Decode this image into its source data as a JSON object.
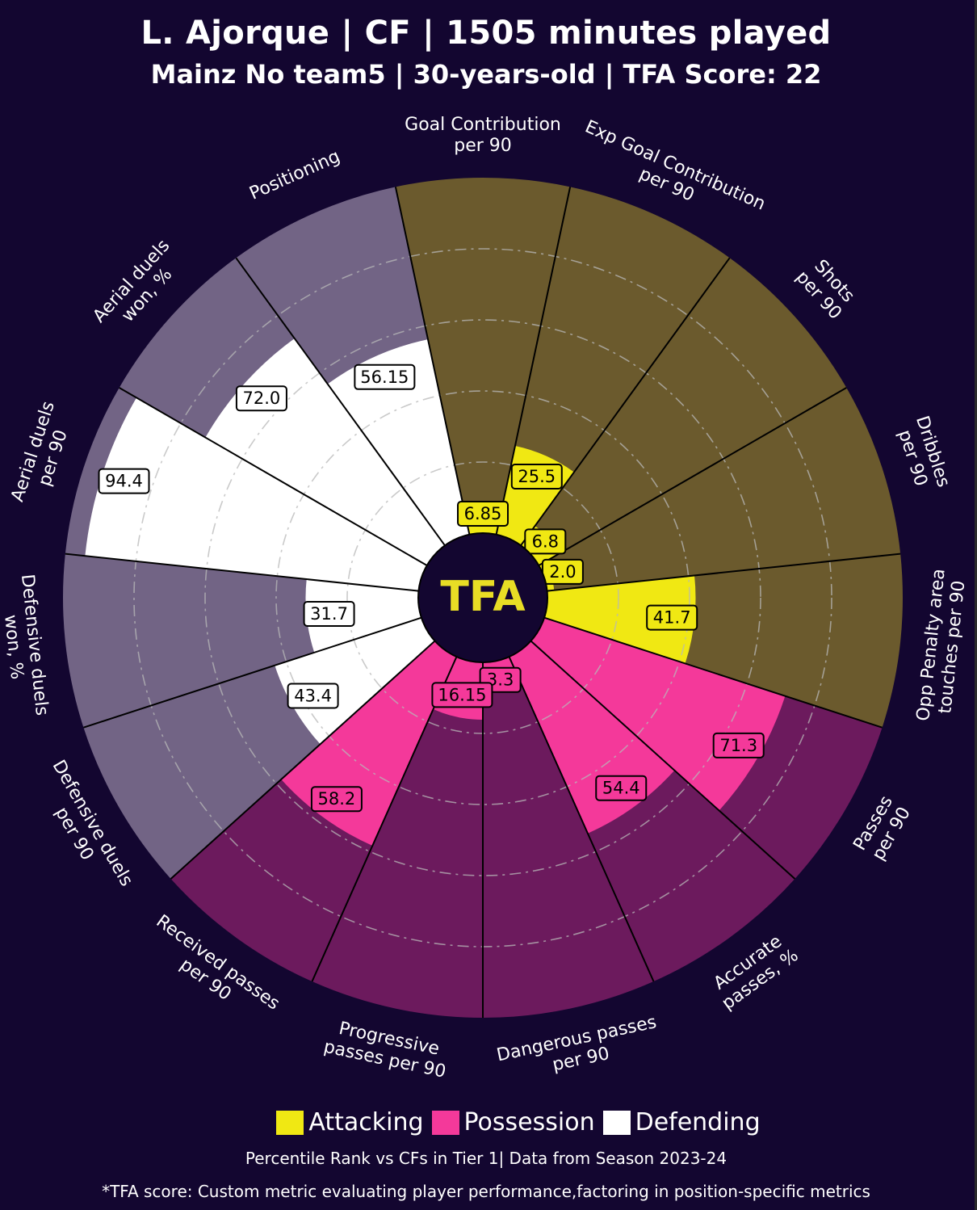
{
  "header": {
    "title": "L. Ajorque | CF | 1505 minutes played",
    "subtitle": "Mainz No team5 | 30-years-old | TFA Score: 22"
  },
  "logo": {
    "text": "TFA",
    "color": "#e8dd25"
  },
  "colors": {
    "background": "#130630",
    "attacking": "#f0e813",
    "possession": "#f4399a",
    "defending": "#ffffff",
    "attacking_bg": "#6b5a2d",
    "possession_bg": "#6c1a5d",
    "defending_bg": "#726485"
  },
  "legend": [
    {
      "label": "Attacking",
      "color": "#f0e813"
    },
    {
      "label": "Possession",
      "color": "#f4399a"
    },
    {
      "label": "Defending",
      "color": "#ffffff"
    }
  ],
  "footnotes": {
    "line1": "Percentile Rank vs CFs in Tier 1| Data from Season 2023-24",
    "line2": "*TFA score: Custom metric evaluating player performance,factoring in position-specific metrics"
  },
  "chart_data": {
    "type": "radial_bar",
    "scale": [
      0,
      100
    ],
    "grid": true,
    "legend_position": "bottom",
    "params": [
      {
        "label": "Goal Contribution\nper 90",
        "value_label": "6.85",
        "value": 6.85,
        "group": "Attacking"
      },
      {
        "label": "Exp Goal Contribution\nper 90",
        "value_label": "25.5",
        "value": 25.5,
        "group": "Attacking"
      },
      {
        "label": "Shots\nper 90",
        "value_label": "6.8",
        "value": 6.8,
        "group": "Attacking"
      },
      {
        "label": "Dribbles\nper 90",
        "value_label": "2.0",
        "value": 2.0,
        "group": "Attacking"
      },
      {
        "label": "Opp Penalty area\ntouches per 90",
        "value_label": "41.7",
        "value": 41.7,
        "group": "Attacking"
      },
      {
        "label": "Passes\nper 90",
        "value_label": "71.3",
        "value": 71.3,
        "group": "Possession"
      },
      {
        "label": "Accurate\npasses, %",
        "value_label": "54.4",
        "value": 54.4,
        "group": "Possession"
      },
      {
        "label": "Dangerous passes\nper 90",
        "value_label": "3.3",
        "value": 3.3,
        "group": "Possession"
      },
      {
        "label": "Progressive\npasses per 90",
        "value_label": "16.15",
        "value": 16.15,
        "group": "Possession"
      },
      {
        "label": "Received passes\nper 90",
        "value_label": "58.2",
        "value": 58.2,
        "group": "Possession"
      },
      {
        "label": "Defensive duels\nper 90",
        "value_label": "43.4",
        "value": 43.4,
        "group": "Defending"
      },
      {
        "label": "Defensive duels\nwon, %",
        "value_label": "31.7",
        "value": 31.7,
        "group": "Defending"
      },
      {
        "label": "Aerial duels\nper 90",
        "value_label": "94.4",
        "value": 94.4,
        "group": "Defending"
      },
      {
        "label": "Aerial duels\nwon, %",
        "value_label": "72.0",
        "value": 72.0,
        "group": "Defending"
      },
      {
        "label": "Positioning",
        "value_label": "56.15",
        "value": 56.15,
        "group": "Defending"
      }
    ]
  }
}
